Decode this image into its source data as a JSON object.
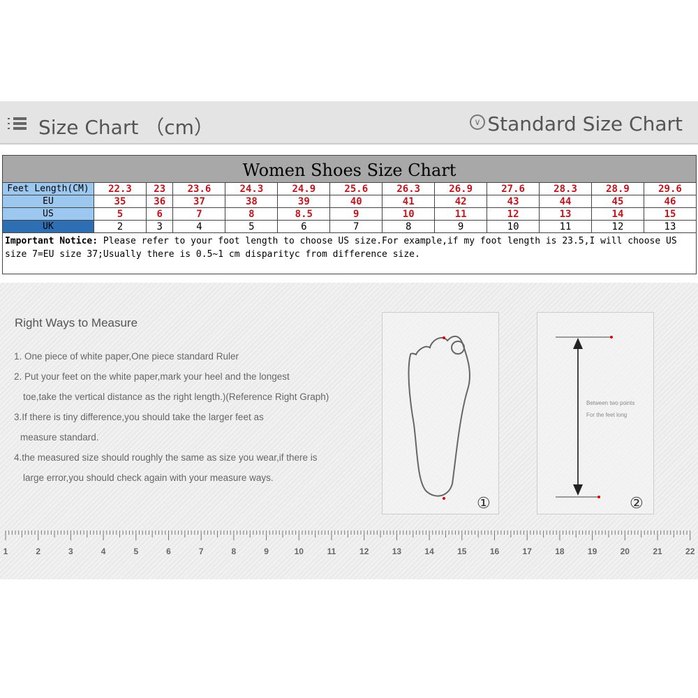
{
  "header": {
    "title": "Size Chart （cm）",
    "right_title": "Standard Size Chart"
  },
  "table": {
    "title": "Women Shoes Size Chart",
    "rows": [
      {
        "label": "Feet Length(CM)",
        "values": [
          "22.3",
          "23",
          "23.6",
          "24.3",
          "24.9",
          "25.6",
          "26.3",
          "26.9",
          "27.6",
          "28.3",
          "28.9",
          "29.6"
        ]
      },
      {
        "label": "EU",
        "values": [
          "35",
          "36",
          "37",
          "38",
          "39",
          "40",
          "41",
          "42",
          "43",
          "44",
          "45",
          "46"
        ]
      },
      {
        "label": "US",
        "values": [
          "5",
          "6",
          "7",
          "8",
          "8.5",
          "9",
          "10",
          "11",
          "12",
          "13",
          "14",
          "15"
        ]
      },
      {
        "label": "UK",
        "values": [
          "2",
          "3",
          "4",
          "5",
          "6",
          "7",
          "8",
          "9",
          "10",
          "11",
          "12",
          "13"
        ]
      }
    ],
    "notice_label": "Important Notice:",
    "notice_text": " Please refer to your foot length to choose US size.For example,if my foot length is 23.5,I will choose US size 7=EU size 37;Usually there is 0.5~1 cm disparityc from difference size."
  },
  "measure": {
    "heading": "Right Ways to Measure",
    "lines": [
      "1. One piece of white paper,One piece standard Ruler",
      "2. Put your feet on the white paper,mark your heel and the longest",
      "toe,take the vertical distance as the right length.)(Reference Right Graph)",
      "3.If there is tiny difference,you should take the larger feet as",
      "measure standard.",
      "4.the measured size should roughly the same as size you wear,if there is",
      "large error,you should check again with your measure ways."
    ],
    "diagram_text_1": "Between two points",
    "diagram_text_2": "For the feet long",
    "fig1": "①",
    "fig2": "②"
  },
  "ruler": {
    "labels": [
      "1",
      "2",
      "3",
      "4",
      "5",
      "6",
      "7",
      "8",
      "9",
      "10",
      "11",
      "12",
      "13",
      "14",
      "15",
      "16",
      "17",
      "18",
      "19",
      "20",
      "21",
      "22"
    ]
  },
  "colors": {
    "accent_red": "#c0151d",
    "label_blue": "#9cc8f0",
    "label_dark_blue": "#2e6fb4"
  }
}
